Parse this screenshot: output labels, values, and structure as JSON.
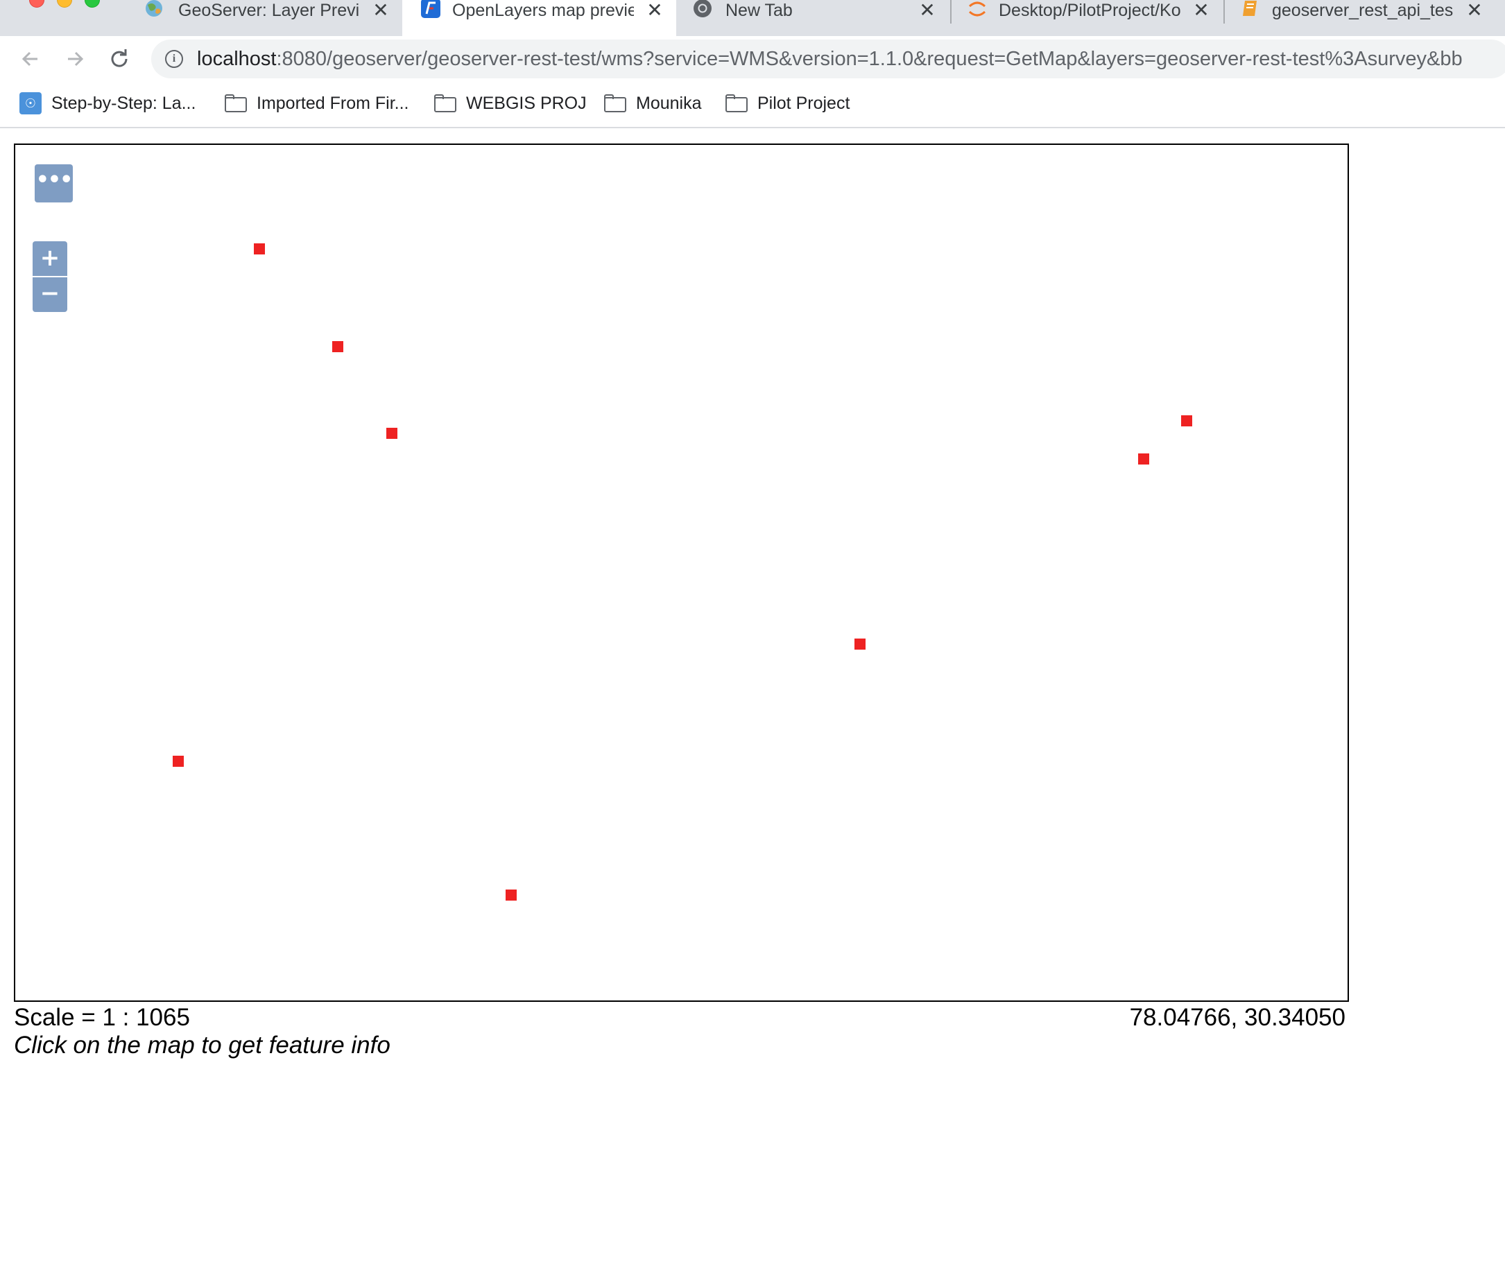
{
  "window": {
    "controls": [
      "close",
      "minimize",
      "maximize"
    ]
  },
  "tabs": [
    {
      "title": "GeoServer: Layer Previe",
      "icon": "globe-icon",
      "active": false
    },
    {
      "title": "OpenLayers map previe",
      "icon": "openlayers-icon",
      "active": true
    },
    {
      "title": "New Tab",
      "icon": "chrome-icon",
      "active": false
    },
    {
      "title": "Desktop/PilotProject/Ko",
      "icon": "jupyter-icon",
      "active": false
    },
    {
      "title": "geoserver_rest_api_tes",
      "icon": "notebook-icon",
      "active": false
    }
  ],
  "tab_close_glyph": "✕",
  "address_bar": {
    "host": "localhost",
    "rest": ":8080/geoserver/geoserver-rest-test/wms?service=WMS&version=1.1.0&request=GetMap&layers=geoserver-rest-test%3Asurvey&bb"
  },
  "bookmarks": [
    {
      "label": "Step-by-Step: La...",
      "icon": "un-logo-icon"
    },
    {
      "label": "Imported From Fir...",
      "icon": "folder-icon"
    },
    {
      "label": "WEBGIS PROJ",
      "icon": "folder-icon"
    },
    {
      "label": "Mounika",
      "icon": "folder-icon"
    },
    {
      "label": "Pilot Project",
      "icon": "folder-icon"
    }
  ],
  "map": {
    "layer_switcher_label": "•••",
    "zoom_in_label": "+",
    "zoom_out_label": "−",
    "point_color": "#ee2222",
    "points": [
      {
        "id": 1
      },
      {
        "id": 2
      },
      {
        "id": 3
      },
      {
        "id": 4
      },
      {
        "id": 5
      },
      {
        "id": 6
      },
      {
        "id": 7
      },
      {
        "id": 8
      }
    ]
  },
  "status": {
    "scale": "Scale = 1 : 1065",
    "coordinates": "78.04766, 30.34050",
    "hint": "Click on the map to get feature info"
  }
}
